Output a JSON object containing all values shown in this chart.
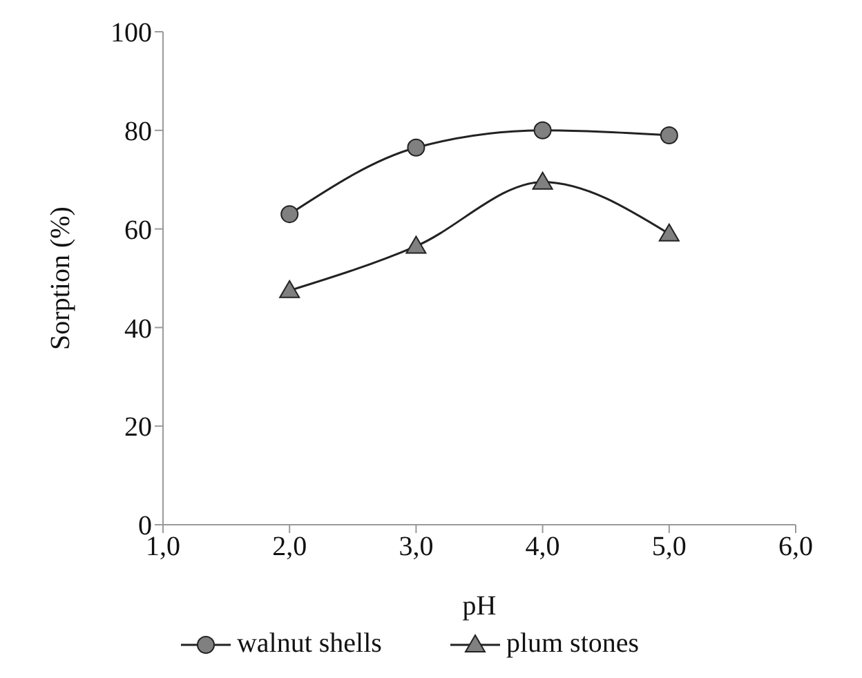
{
  "chart_data": {
    "type": "line",
    "xlabel": "pH",
    "ylabel": "Sorption (%)",
    "xlim": [
      1,
      6
    ],
    "xticks": [
      {
        "value": 1,
        "label": "1,0"
      },
      {
        "value": 2,
        "label": "2,0"
      },
      {
        "value": 3,
        "label": "3,0"
      },
      {
        "value": 4,
        "label": "4,0"
      },
      {
        "value": 5,
        "label": "5,0"
      },
      {
        "value": 6,
        "label": "6,0"
      }
    ],
    "ylim": [
      0,
      100
    ],
    "yticks": [
      0,
      20,
      40,
      60,
      80,
      100
    ],
    "x": [
      2,
      3,
      4,
      5
    ],
    "series": [
      {
        "name": "walnut shells",
        "color": "#808080",
        "marker": "circle",
        "values": [
          63,
          76.5,
          80,
          79
        ]
      },
      {
        "name": "plum stones",
        "color": "#808080",
        "marker": "triangle",
        "values": [
          47.5,
          56.5,
          69.5,
          59
        ]
      }
    ],
    "legend": "bottom",
    "grid": false,
    "line_style": "solid"
  }
}
